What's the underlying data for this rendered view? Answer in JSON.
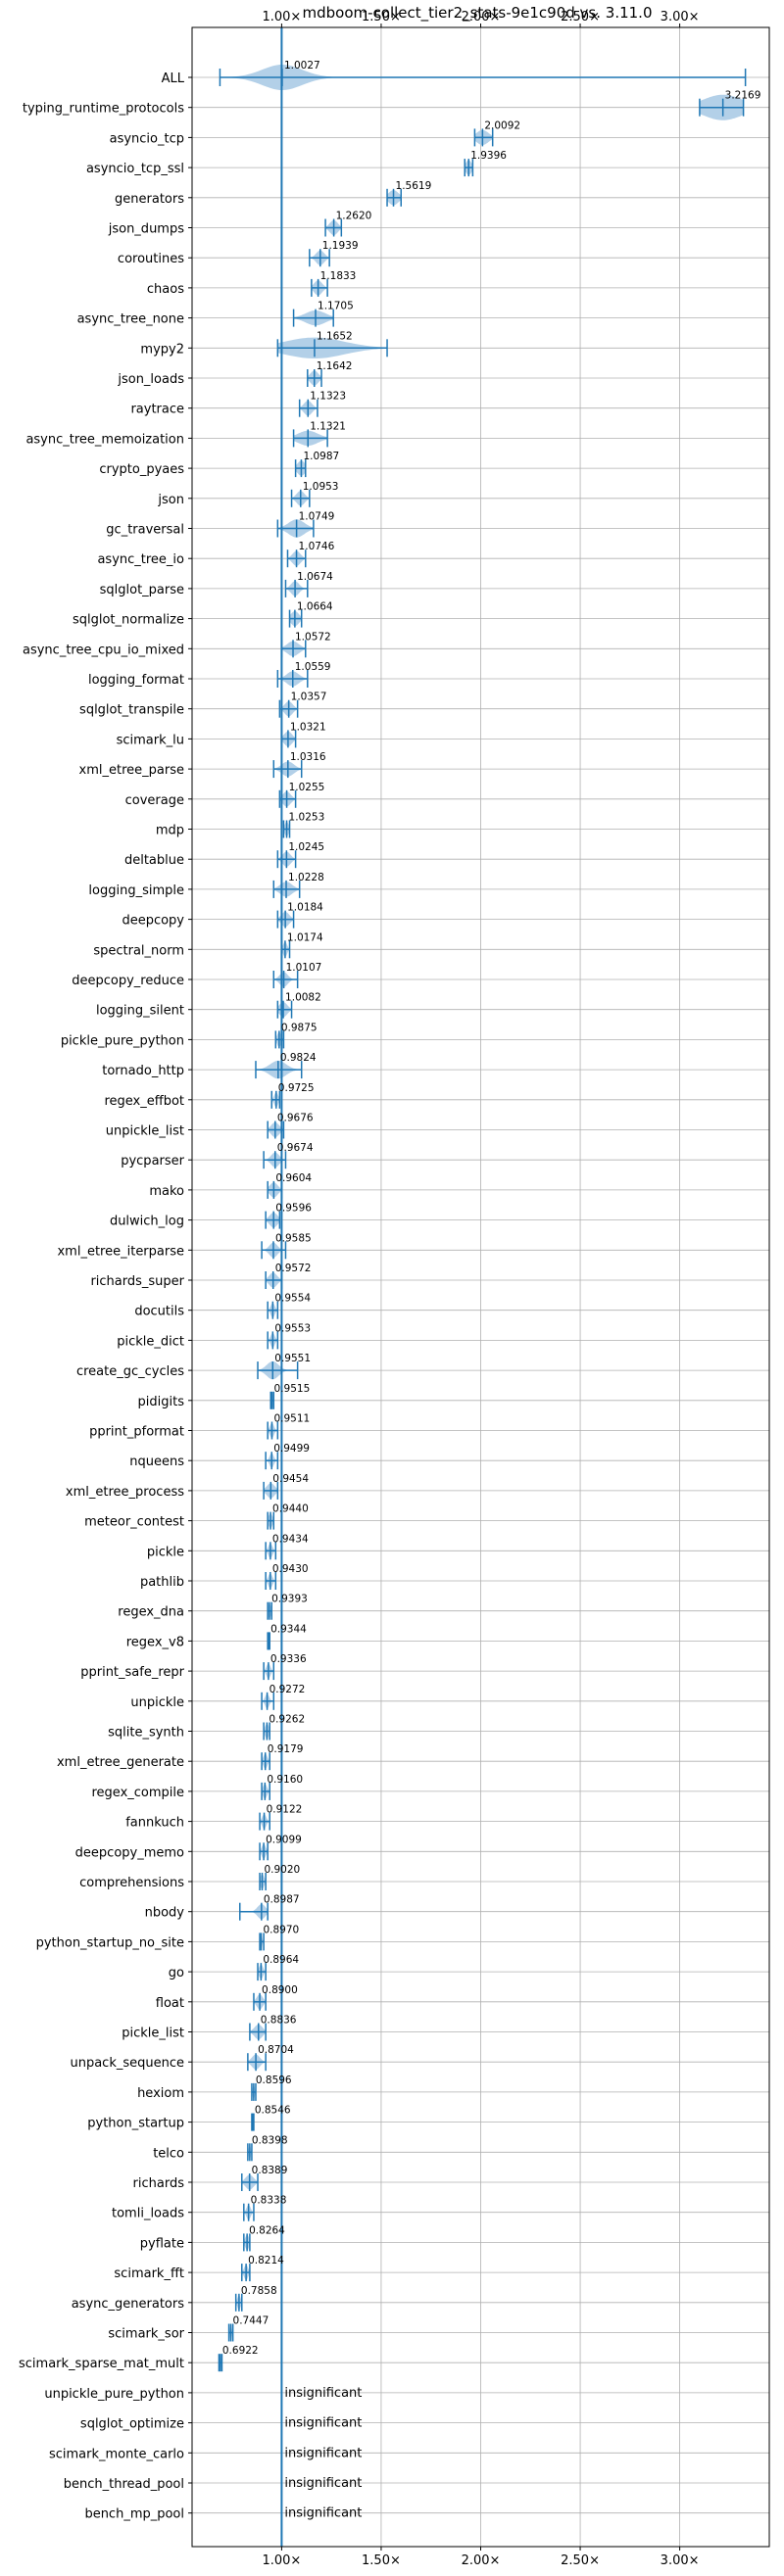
{
  "chart_data": {
    "type": "violin",
    "title": "mdboom-collect_tier2_stats-9e1c90d vs. 3.11.0",
    "xlabel": "",
    "ylabel": "",
    "xlim": [
      0.55,
      3.45
    ],
    "x_ticks": [
      1.0,
      1.5,
      2.0,
      2.5,
      3.0
    ],
    "x_tick_labels": [
      "1.00×",
      "1.50×",
      "2.00×",
      "2.50×",
      "3.00×"
    ],
    "reference_line": 1.0,
    "grid": true,
    "colors": {
      "line": "#1f77b4",
      "violin": "#a6c8e4",
      "grid": "#b0b0b0"
    },
    "insignificant_label": "insignificant",
    "benchmarks": [
      {
        "name": "ALL",
        "value": 1.0027,
        "label": "1.0027",
        "min": 0.69,
        "max": 3.33,
        "spread": 0.1,
        "width": 0.85
      },
      {
        "name": "typing_runtime_protocols",
        "value": 3.2169,
        "label": "3.2169",
        "min": 3.1,
        "max": 3.32,
        "spread": 0.1,
        "width": 0.85
      },
      {
        "name": "asyncio_tcp",
        "value": 2.0092,
        "label": "2.0092",
        "min": 1.97,
        "max": 2.06,
        "spread": 0.03,
        "width": 0.5
      },
      {
        "name": "asyncio_tcp_ssl",
        "value": 1.9396,
        "label": "1.9396",
        "min": 1.92,
        "max": 1.96,
        "spread": 0.015,
        "width": 0.5
      },
      {
        "name": "generators",
        "value": 1.5619,
        "label": "1.5619",
        "min": 1.53,
        "max": 1.6,
        "spread": 0.025,
        "width": 0.5
      },
      {
        "name": "json_dumps",
        "value": 1.262,
        "label": "1.2620",
        "min": 1.22,
        "max": 1.3,
        "spread": 0.02,
        "width": 0.5
      },
      {
        "name": "coroutines",
        "value": 1.1939,
        "label": "1.1939",
        "min": 1.14,
        "max": 1.24,
        "spread": 0.02,
        "width": 0.5
      },
      {
        "name": "chaos",
        "value": 1.1833,
        "label": "1.1833",
        "min": 1.15,
        "max": 1.23,
        "spread": 0.02,
        "width": 0.5
      },
      {
        "name": "async_tree_none",
        "value": 1.1705,
        "label": "1.1705",
        "min": 1.06,
        "max": 1.26,
        "spread": 0.05,
        "width": 0.5
      },
      {
        "name": "mypy2",
        "value": 1.1652,
        "label": "1.1652",
        "min": 0.98,
        "max": 1.53,
        "spread": 0.15,
        "width": 0.7
      },
      {
        "name": "json_loads",
        "value": 1.1642,
        "label": "1.1642",
        "min": 1.13,
        "max": 1.2,
        "spread": 0.02,
        "width": 0.5
      },
      {
        "name": "raytrace",
        "value": 1.1323,
        "label": "1.1323",
        "min": 1.09,
        "max": 1.18,
        "spread": 0.02,
        "width": 0.5
      },
      {
        "name": "async_tree_memoization",
        "value": 1.1321,
        "label": "1.1321",
        "min": 1.06,
        "max": 1.23,
        "spread": 0.05,
        "width": 0.5
      },
      {
        "name": "crypto_pyaes",
        "value": 1.0987,
        "label": "1.0987",
        "min": 1.07,
        "max": 1.12,
        "spread": 0.02,
        "width": 0.5
      },
      {
        "name": "json",
        "value": 1.0953,
        "label": "1.0953",
        "min": 1.05,
        "max": 1.14,
        "spread": 0.02,
        "width": 0.5
      },
      {
        "name": "gc_traversal",
        "value": 1.0749,
        "label": "1.0749",
        "min": 0.98,
        "max": 1.16,
        "spread": 0.04,
        "width": 0.6
      },
      {
        "name": "async_tree_io",
        "value": 1.0746,
        "label": "1.0746",
        "min": 1.03,
        "max": 1.12,
        "spread": 0.02,
        "width": 0.5
      },
      {
        "name": "sqlglot_parse",
        "value": 1.0674,
        "label": "1.0674",
        "min": 1.02,
        "max": 1.13,
        "spread": 0.02,
        "width": 0.5
      },
      {
        "name": "sqlglot_normalize",
        "value": 1.0664,
        "label": "1.0664",
        "min": 1.04,
        "max": 1.1,
        "spread": 0.02,
        "width": 0.5
      },
      {
        "name": "async_tree_cpu_io_mixed",
        "value": 1.0572,
        "label": "1.0572",
        "min": 1.0,
        "max": 1.12,
        "spread": 0.03,
        "width": 0.5
      },
      {
        "name": "logging_format",
        "value": 1.0559,
        "label": "1.0559",
        "min": 0.98,
        "max": 1.13,
        "spread": 0.03,
        "width": 0.5
      },
      {
        "name": "sqlglot_transpile",
        "value": 1.0357,
        "label": "1.0357",
        "min": 0.99,
        "max": 1.08,
        "spread": 0.02,
        "width": 0.5
      },
      {
        "name": "scimark_lu",
        "value": 1.0321,
        "label": "1.0321",
        "min": 1.0,
        "max": 1.07,
        "spread": 0.02,
        "width": 0.5
      },
      {
        "name": "xml_etree_parse",
        "value": 1.0316,
        "label": "1.0316",
        "min": 0.96,
        "max": 1.1,
        "spread": 0.03,
        "width": 0.5
      },
      {
        "name": "coverage",
        "value": 1.0255,
        "label": "1.0255",
        "min": 0.99,
        "max": 1.07,
        "spread": 0.02,
        "width": 0.5
      },
      {
        "name": "mdp",
        "value": 1.0253,
        "label": "1.0253",
        "min": 1.01,
        "max": 1.04,
        "spread": 0.01,
        "width": 0.5
      },
      {
        "name": "deltablue",
        "value": 1.0245,
        "label": "1.0245",
        "min": 0.98,
        "max": 1.07,
        "spread": 0.02,
        "width": 0.5
      },
      {
        "name": "logging_simple",
        "value": 1.0228,
        "label": "1.0228",
        "min": 0.96,
        "max": 1.09,
        "spread": 0.03,
        "width": 0.5
      },
      {
        "name": "deepcopy",
        "value": 1.0184,
        "label": "1.0184",
        "min": 0.98,
        "max": 1.06,
        "spread": 0.02,
        "width": 0.5
      },
      {
        "name": "spectral_norm",
        "value": 1.0174,
        "label": "1.0174",
        "min": 1.0,
        "max": 1.04,
        "spread": 0.01,
        "width": 0.5
      },
      {
        "name": "deepcopy_reduce",
        "value": 1.0107,
        "label": "1.0107",
        "min": 0.96,
        "max": 1.08,
        "spread": 0.02,
        "width": 0.5
      },
      {
        "name": "logging_silent",
        "value": 1.0082,
        "label": "1.0082",
        "min": 0.98,
        "max": 1.05,
        "spread": 0.02,
        "width": 0.5
      },
      {
        "name": "pickle_pure_python",
        "value": 0.9875,
        "label": "0.9875",
        "min": 0.97,
        "max": 1.01,
        "spread": 0.01,
        "width": 0.5
      },
      {
        "name": "tornado_http",
        "value": 0.9824,
        "label": "0.9824",
        "min": 0.87,
        "max": 1.1,
        "spread": 0.04,
        "width": 0.6
      },
      {
        "name": "regex_effbot",
        "value": 0.9725,
        "label": "0.9725",
        "min": 0.95,
        "max": 0.99,
        "spread": 0.01,
        "width": 0.5
      },
      {
        "name": "unpickle_list",
        "value": 0.9676,
        "label": "0.9676",
        "min": 0.93,
        "max": 1.01,
        "spread": 0.02,
        "width": 0.5
      },
      {
        "name": "pycparser",
        "value": 0.9674,
        "label": "0.9674",
        "min": 0.91,
        "max": 1.02,
        "spread": 0.02,
        "width": 0.5
      },
      {
        "name": "mako",
        "value": 0.9604,
        "label": "0.9604",
        "min": 0.93,
        "max": 1.0,
        "spread": 0.02,
        "width": 0.5
      },
      {
        "name": "dulwich_log",
        "value": 0.9596,
        "label": "0.9596",
        "min": 0.92,
        "max": 0.99,
        "spread": 0.02,
        "width": 0.5
      },
      {
        "name": "xml_etree_iterparse",
        "value": 0.9585,
        "label": "0.9585",
        "min": 0.9,
        "max": 1.02,
        "spread": 0.02,
        "width": 0.5
      },
      {
        "name": "richards_super",
        "value": 0.9572,
        "label": "0.9572",
        "min": 0.92,
        "max": 1.0,
        "spread": 0.02,
        "width": 0.5
      },
      {
        "name": "docutils",
        "value": 0.9554,
        "label": "0.9554",
        "min": 0.93,
        "max": 0.98,
        "spread": 0.01,
        "width": 0.5
      },
      {
        "name": "pickle_dict",
        "value": 0.9553,
        "label": "0.9553",
        "min": 0.93,
        "max": 0.98,
        "spread": 0.01,
        "width": 0.5
      },
      {
        "name": "create_gc_cycles",
        "value": 0.9551,
        "label": "0.9551",
        "min": 0.88,
        "max": 1.08,
        "spread": 0.03,
        "width": 0.6
      },
      {
        "name": "pidigits",
        "value": 0.9515,
        "label": "0.9515",
        "min": 0.945,
        "max": 0.96,
        "spread": 0.005,
        "width": 0.5
      },
      {
        "name": "pprint_pformat",
        "value": 0.9511,
        "label": "0.9511",
        "min": 0.93,
        "max": 0.98,
        "spread": 0.01,
        "width": 0.5
      },
      {
        "name": "nqueens",
        "value": 0.9499,
        "label": "0.9499",
        "min": 0.92,
        "max": 0.98,
        "spread": 0.01,
        "width": 0.5
      },
      {
        "name": "xml_etree_process",
        "value": 0.9454,
        "label": "0.9454",
        "min": 0.91,
        "max": 0.98,
        "spread": 0.02,
        "width": 0.5
      },
      {
        "name": "meteor_contest",
        "value": 0.944,
        "label": "0.9440",
        "min": 0.93,
        "max": 0.96,
        "spread": 0.01,
        "width": 0.5
      },
      {
        "name": "pickle",
        "value": 0.9434,
        "label": "0.9434",
        "min": 0.92,
        "max": 0.97,
        "spread": 0.01,
        "width": 0.5
      },
      {
        "name": "pathlib",
        "value": 0.943,
        "label": "0.9430",
        "min": 0.92,
        "max": 0.97,
        "spread": 0.01,
        "width": 0.5
      },
      {
        "name": "regex_dna",
        "value": 0.9393,
        "label": "0.9393",
        "min": 0.93,
        "max": 0.95,
        "spread": 0.007,
        "width": 0.5
      },
      {
        "name": "regex_v8",
        "value": 0.9344,
        "label": "0.9344",
        "min": 0.93,
        "max": 0.94,
        "spread": 0.005,
        "width": 0.5
      },
      {
        "name": "pprint_safe_repr",
        "value": 0.9336,
        "label": "0.9336",
        "min": 0.91,
        "max": 0.96,
        "spread": 0.01,
        "width": 0.5
      },
      {
        "name": "unpickle",
        "value": 0.9272,
        "label": "0.9272",
        "min": 0.9,
        "max": 0.96,
        "spread": 0.01,
        "width": 0.5
      },
      {
        "name": "sqlite_synth",
        "value": 0.9262,
        "label": "0.9262",
        "min": 0.91,
        "max": 0.94,
        "spread": 0.01,
        "width": 0.5
      },
      {
        "name": "xml_etree_generate",
        "value": 0.9179,
        "label": "0.9179",
        "min": 0.9,
        "max": 0.94,
        "spread": 0.01,
        "width": 0.5
      },
      {
        "name": "regex_compile",
        "value": 0.916,
        "label": "0.9160",
        "min": 0.9,
        "max": 0.94,
        "spread": 0.01,
        "width": 0.5
      },
      {
        "name": "fannkuch",
        "value": 0.9122,
        "label": "0.9122",
        "min": 0.89,
        "max": 0.94,
        "spread": 0.01,
        "width": 0.5
      },
      {
        "name": "deepcopy_memo",
        "value": 0.9099,
        "label": "0.9099",
        "min": 0.89,
        "max": 0.93,
        "spread": 0.01,
        "width": 0.5
      },
      {
        "name": "comprehensions",
        "value": 0.902,
        "label": "0.9020",
        "min": 0.89,
        "max": 0.92,
        "spread": 0.01,
        "width": 0.5
      },
      {
        "name": "nbody",
        "value": 0.8987,
        "label": "0.8987",
        "min": 0.79,
        "max": 0.93,
        "spread": 0.02,
        "width": 0.5
      },
      {
        "name": "python_startup_no_site",
        "value": 0.897,
        "label": "0.8970",
        "min": 0.89,
        "max": 0.91,
        "spread": 0.005,
        "width": 0.5
      },
      {
        "name": "go",
        "value": 0.8964,
        "label": "0.8964",
        "min": 0.88,
        "max": 0.92,
        "spread": 0.01,
        "width": 0.5
      },
      {
        "name": "float",
        "value": 0.89,
        "label": "0.8900",
        "min": 0.86,
        "max": 0.92,
        "spread": 0.015,
        "width": 0.5
      },
      {
        "name": "pickle_list",
        "value": 0.8836,
        "label": "0.8836",
        "min": 0.84,
        "max": 0.92,
        "spread": 0.02,
        "width": 0.5
      },
      {
        "name": "unpack_sequence",
        "value": 0.8704,
        "label": "0.8704",
        "min": 0.83,
        "max": 0.92,
        "spread": 0.02,
        "width": 0.5
      },
      {
        "name": "hexiom",
        "value": 0.8596,
        "label": "0.8596",
        "min": 0.85,
        "max": 0.87,
        "spread": 0.005,
        "width": 0.5
      },
      {
        "name": "python_startup",
        "value": 0.8546,
        "label": "0.8546",
        "min": 0.85,
        "max": 0.86,
        "spread": 0.004,
        "width": 0.5
      },
      {
        "name": "telco",
        "value": 0.8398,
        "label": "0.8398",
        "min": 0.83,
        "max": 0.85,
        "spread": 0.005,
        "width": 0.5
      },
      {
        "name": "richards",
        "value": 0.8389,
        "label": "0.8389",
        "min": 0.8,
        "max": 0.88,
        "spread": 0.02,
        "width": 0.5
      },
      {
        "name": "tomli_loads",
        "value": 0.8338,
        "label": "0.8338",
        "min": 0.81,
        "max": 0.86,
        "spread": 0.01,
        "width": 0.5
      },
      {
        "name": "pyflate",
        "value": 0.8264,
        "label": "0.8264",
        "min": 0.81,
        "max": 0.84,
        "spread": 0.01,
        "width": 0.5
      },
      {
        "name": "scimark_fft",
        "value": 0.8214,
        "label": "0.8214",
        "min": 0.8,
        "max": 0.84,
        "spread": 0.01,
        "width": 0.5
      },
      {
        "name": "async_generators",
        "value": 0.7858,
        "label": "0.7858",
        "min": 0.77,
        "max": 0.8,
        "spread": 0.008,
        "width": 0.5
      },
      {
        "name": "scimark_sor",
        "value": 0.7447,
        "label": "0.7447",
        "min": 0.735,
        "max": 0.755,
        "spread": 0.005,
        "width": 0.5
      },
      {
        "name": "scimark_sparse_mat_mult",
        "value": 0.6922,
        "label": "0.6922",
        "min": 0.685,
        "max": 0.7,
        "spread": 0.004,
        "width": 0.5
      },
      {
        "name": "unpickle_pure_python",
        "value": null,
        "label": "insignificant"
      },
      {
        "name": "sqlglot_optimize",
        "value": null,
        "label": "insignificant"
      },
      {
        "name": "scimark_monte_carlo",
        "value": null,
        "label": "insignificant"
      },
      {
        "name": "bench_thread_pool",
        "value": null,
        "label": "insignificant"
      },
      {
        "name": "bench_mp_pool",
        "value": null,
        "label": "insignificant"
      }
    ]
  }
}
